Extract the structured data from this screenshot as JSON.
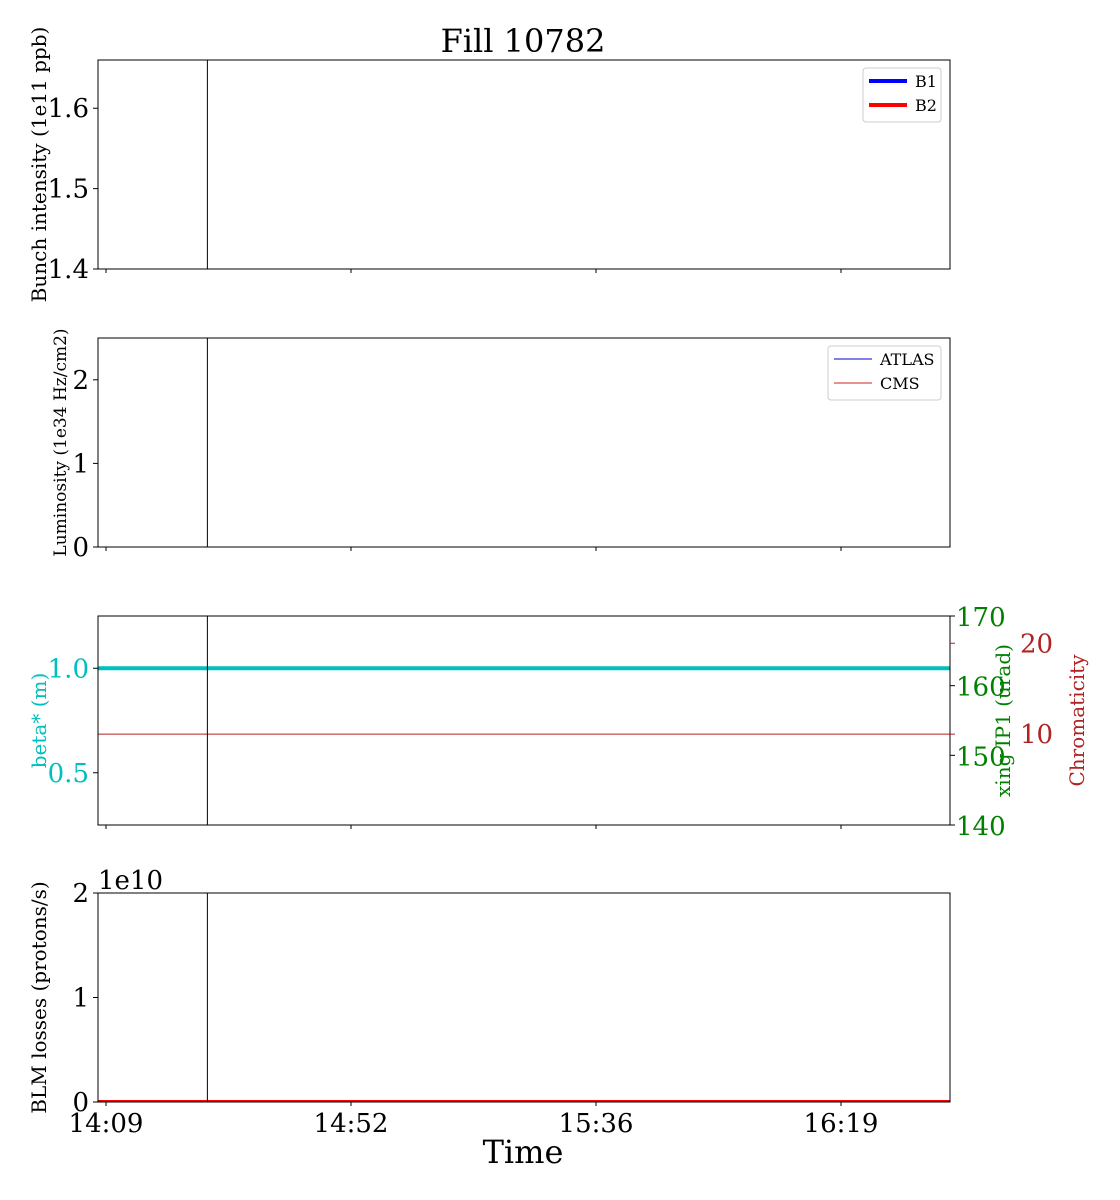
{
  "figure": {
    "title": "Fill 10782",
    "xlabel": "Time",
    "x_ticks": [
      "14:09",
      "14:52",
      "15:36",
      "16:19"
    ]
  },
  "colors": {
    "b1": "#0000ff",
    "b2": "#ff0000",
    "atlas": "#0000cc",
    "cms": "#cc2222",
    "beta": "#00bfbf",
    "xing": "#008000",
    "chroma": "#b22222",
    "axis": "#000000"
  },
  "chart_data": [
    {
      "type": "line",
      "ylabel": "Bunch intensity (1e11 ppb)",
      "ylim": [
        1.4,
        1.66
      ],
      "y_ticks": [
        "1.4",
        "1.5",
        "1.6"
      ],
      "y_tick_values": [
        1.4,
        1.5,
        1.6
      ],
      "legend": "top-right",
      "series": [
        {
          "name": "B1",
          "values": []
        },
        {
          "name": "B2",
          "values": []
        }
      ],
      "vline_time": "14:27"
    },
    {
      "type": "line",
      "ylabel": "Luminosity (1e34 Hz/cm2)",
      "ylim": [
        0,
        2.5
      ],
      "y_ticks": [
        "0",
        "1",
        "2"
      ],
      "y_tick_values": [
        0,
        1,
        2
      ],
      "legend": "top-right",
      "series": [
        {
          "name": "ATLAS",
          "values": [
            0,
            0
          ]
        },
        {
          "name": "CMS",
          "values": [
            0,
            0
          ]
        }
      ],
      "vline_time": "14:27"
    },
    {
      "type": "line",
      "ylabel": "beta* (m)",
      "ylim": [
        0.25,
        1.25
      ],
      "y_ticks": [
        "0.5",
        "1.0"
      ],
      "y_tick_values": [
        0.5,
        1.0
      ],
      "series": [
        {
          "values": [
            1.0,
            1.0
          ]
        }
      ],
      "right_axis_1": {
        "ylabel": "xing IP1 (urad)",
        "ylim": [
          140,
          170
        ],
        "y_ticks": [
          "140",
          "150",
          "160",
          "170"
        ],
        "y_tick_values": [
          140,
          150,
          160,
          170
        ]
      },
      "right_axis_2": {
        "ylabel": "Chromaticity",
        "ylim": [
          0,
          23
        ],
        "y_ticks": [
          "10",
          "20"
        ],
        "y_tick_values": [
          10,
          20
        ],
        "series": [
          {
            "values": [
              10,
              10
            ]
          }
        ]
      },
      "vline_time": "14:27"
    },
    {
      "type": "line",
      "ylabel": "BLM losses (protons/s)",
      "offset_text": "1e10",
      "ylim": [
        0,
        2
      ],
      "y_ticks": [
        "0",
        "1",
        "2"
      ],
      "y_tick_values": [
        0,
        1,
        2
      ],
      "series": [
        {
          "values": [
            0,
            0
          ]
        }
      ],
      "vline_time": "14:27"
    }
  ]
}
